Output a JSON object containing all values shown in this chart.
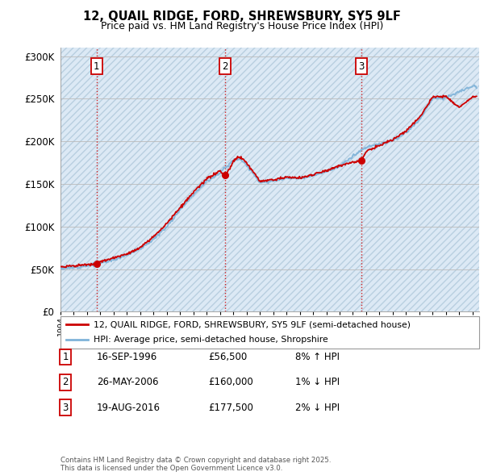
{
  "title": "12, QUAIL RIDGE, FORD, SHREWSBURY, SY5 9LF",
  "subtitle": "Price paid vs. HM Land Registry's House Price Index (HPI)",
  "bg_color": "#ffffff",
  "chart_bg": "#dce9f5",
  "red_color": "#cc0000",
  "blue_color": "#7fb3d9",
  "ylim": [
    0,
    310000
  ],
  "yticks": [
    0,
    50000,
    100000,
    150000,
    200000,
    250000,
    300000
  ],
  "ytick_labels": [
    "£0",
    "£50K",
    "£100K",
    "£150K",
    "£200K",
    "£250K",
    "£300K"
  ],
  "sale_points": [
    {
      "year": 1996.72,
      "price": 56500,
      "label": "1"
    },
    {
      "year": 2006.4,
      "price": 160000,
      "label": "2"
    },
    {
      "year": 2016.63,
      "price": 177500,
      "label": "3"
    }
  ],
  "legend_entries": [
    {
      "label": "12, QUAIL RIDGE, FORD, SHREWSBURY, SY5 9LF (semi-detached house)",
      "color": "#cc0000"
    },
    {
      "label": "HPI: Average price, semi-detached house, Shropshire",
      "color": "#7fb3d9"
    }
  ],
  "table_rows": [
    {
      "num": "1",
      "date": "16-SEP-1996",
      "price": "£56,500",
      "hpi": "8% ↑ HPI"
    },
    {
      "num": "2",
      "date": "26-MAY-2006",
      "price": "£160,000",
      "hpi": "1% ↓ HPI"
    },
    {
      "num": "3",
      "date": "19-AUG-2016",
      "price": "£177,500",
      "hpi": "2% ↓ HPI"
    }
  ],
  "footnote": "Contains HM Land Registry data © Crown copyright and database right 2025.\nThis data is licensed under the Open Government Licence v3.0.",
  "vline_color": "#cc0000",
  "grid_color": "#bbbbbb",
  "hpi_knots": [
    1994,
    1995,
    1996,
    1997,
    1998,
    1999,
    2000,
    2001,
    2002,
    2003,
    2004,
    2005,
    2006,
    2007,
    2007.5,
    2008,
    2009,
    2010,
    2011,
    2012,
    2013,
    2014,
    2015,
    2016,
    2017,
    2018,
    2019,
    2020,
    2021,
    2022,
    2023,
    2024,
    2025
  ],
  "hpi_vals": [
    51000,
    52000,
    54000,
    57000,
    61000,
    67000,
    74000,
    85000,
    100000,
    120000,
    138000,
    153000,
    163000,
    178000,
    180000,
    172000,
    152000,
    153000,
    157000,
    156000,
    160000,
    165000,
    170000,
    183000,
    193000,
    197000,
    201000,
    210000,
    225000,
    250000,
    252000,
    258000,
    265000
  ],
  "red_knots": [
    1994,
    1995,
    1996,
    1996.72,
    1997,
    1998,
    1999,
    2000,
    2001,
    2002,
    2003,
    2004,
    2005,
    2006,
    2006.4,
    2006.8,
    2007,
    2007.5,
    2008,
    2009,
    2010,
    2011,
    2012,
    2013,
    2014,
    2015,
    2016,
    2016.63,
    2017,
    2018,
    2019,
    2020,
    2021,
    2022,
    2023,
    2024,
    2025
  ],
  "red_vals": [
    53000,
    54000,
    55000,
    56500,
    59000,
    63000,
    68000,
    75000,
    88000,
    104000,
    122000,
    140000,
    156000,
    165000,
    160000,
    170000,
    177000,
    182000,
    175000,
    153000,
    155000,
    158000,
    157000,
    161000,
    166000,
    171000,
    176000,
    177500,
    188000,
    195000,
    202000,
    212000,
    228000,
    252000,
    253000,
    240000,
    252000
  ]
}
